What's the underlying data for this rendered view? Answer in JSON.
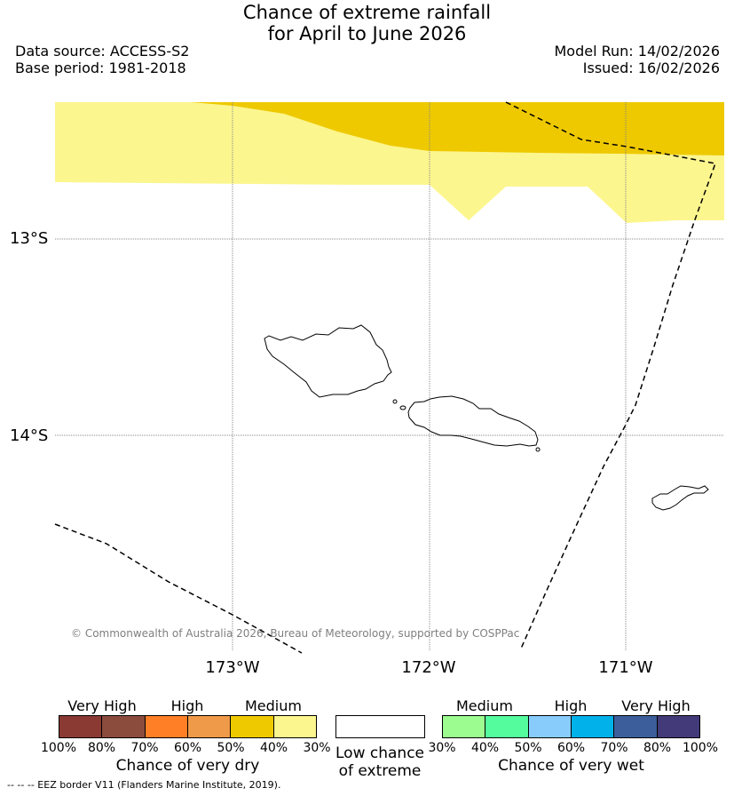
{
  "title": {
    "line1": "Chance of extreme rainfall",
    "line2": "for April to June 2026"
  },
  "meta": {
    "data_source": "Data source: ACCESS-S2",
    "base_period": "Base period: 1981-2018",
    "model_run": "Model Run: 14/02/2026",
    "issued": "Issued: 16/02/2026"
  },
  "map": {
    "lat_labels": [
      "13°S",
      "14°S"
    ],
    "lon_labels": [
      "173°W",
      "172°W",
      "171°W"
    ],
    "copyright": "© Commonwealth of Australia 2026, Bureau of Meteorology, supported by COSPPac",
    "regions": [
      {
        "category": "Medium (40-50% chance of very dry)",
        "color": "#eec900"
      },
      {
        "category": "Medium (30-40% chance of very dry)",
        "color": "#fcf68e"
      }
    ],
    "islands": [
      "Savai'i",
      "Upolu",
      "Tutuila"
    ]
  },
  "legend": {
    "dry": {
      "title": "Chance of very dry",
      "categories": [
        "Very High",
        "High",
        "Medium"
      ],
      "colors": [
        "#8b3a33",
        "#8b4c3d",
        "#ff7f27",
        "#ef9a48",
        "#eec900",
        "#fcf68e"
      ],
      "ticks": [
        "100%",
        "80%",
        "70%",
        "60%",
        "50%",
        "40%",
        "30%"
      ]
    },
    "low": {
      "line1": "Low chance",
      "line2": "of extreme",
      "color": "#ffffff"
    },
    "wet": {
      "title": "Chance of very wet",
      "categories": [
        "Medium",
        "High",
        "Very High"
      ],
      "colors": [
        "#9dfc8f",
        "#55fc9d",
        "#87ccfa",
        "#00b1ea",
        "#3c5f9b",
        "#433a7a"
      ],
      "ticks": [
        "30%",
        "40%",
        "50%",
        "60%",
        "70%",
        "80%",
        "100%"
      ]
    }
  },
  "footnote": "-- -- -- EEZ border V11 (Flanders Marine Institute, 2019)."
}
